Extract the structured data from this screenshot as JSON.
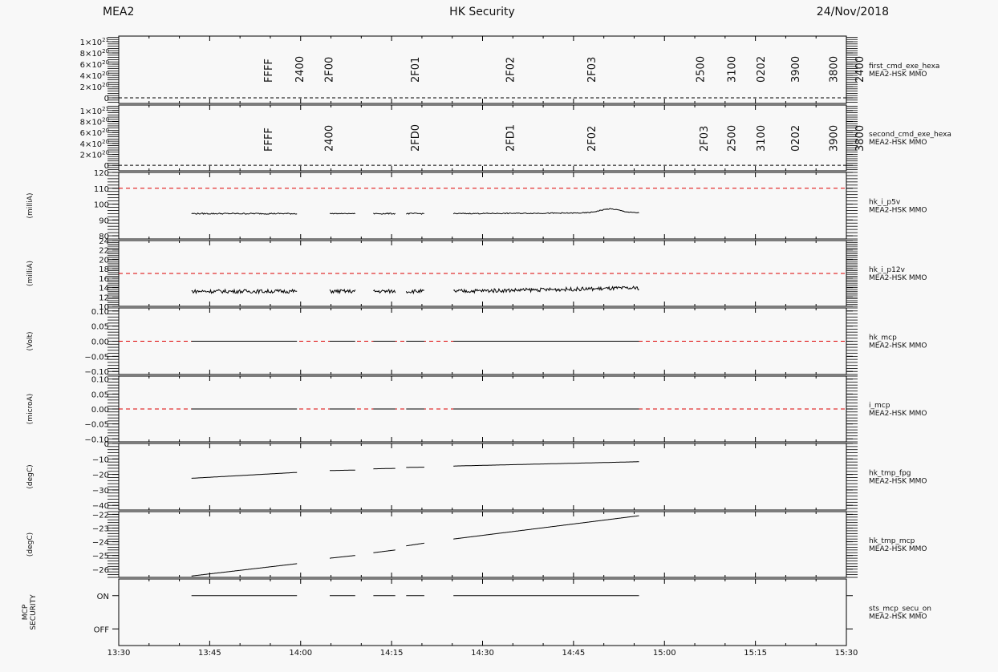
{
  "header": {
    "left": "MEA2",
    "center": "HK Security",
    "right": "24/Nov/2018"
  },
  "colors": {
    "background": "#f8f8f8",
    "axis": "#000000",
    "line": "#000000",
    "threshold": "#dd0000"
  },
  "chart_data": {
    "type": "line",
    "x_axis": {
      "start": "13:30",
      "end": "15:30",
      "tick_labels": [
        "13:30",
        "13:45",
        "14:00",
        "14:15",
        "14:30",
        "14:45",
        "15:00",
        "15:15",
        "15:30"
      ],
      "minor_step_minutes": 5
    },
    "panels": [
      {
        "id": "first_cmd",
        "ylabel": "",
        "title": "first_cmd_exe_hexa",
        "source": "MEA2-HSK MMO",
        "ylim": [
          -1e+20,
          1.1e+21
        ],
        "tick_labels": [
          {
            "v": 1e+21,
            "label": "1×10",
            "exp": "21"
          },
          {
            "v": 8e+20,
            "label": "8×10",
            "exp": "20"
          },
          {
            "v": 6e+20,
            "label": "6×10",
            "exp": "20"
          },
          {
            "v": 4e+20,
            "label": "4×10",
            "exp": "20"
          },
          {
            "v": 2e+20,
            "label": "2×10",
            "exp": "20"
          },
          {
            "v": 0,
            "label": "0",
            "exp": ""
          }
        ],
        "zero_line": 0,
        "annotations": [
          {
            "t": 13.7,
            "label": "FFFF"
          },
          {
            "t": 13.88,
            "label": "2400"
          },
          {
            "t": 14.05,
            "label": "2F00"
          },
          {
            "t": 14.55,
            "label": "2F01"
          },
          {
            "t": 15.1,
            "label": "2F02"
          },
          {
            "t": 15.57,
            "label": "2F03"
          },
          {
            "t": 16.2,
            "label": "2500"
          },
          {
            "t": 16.38,
            "label": "3100"
          },
          {
            "t": 16.55,
            "label": "0202"
          },
          {
            "t": 16.75,
            "label": "3900"
          },
          {
            "t": 16.97,
            "label": "3800"
          },
          {
            "t": 17.12,
            "label": "2400"
          }
        ]
      },
      {
        "id": "second_cmd",
        "ylabel": "",
        "title": "second_cmd_exe_hexa",
        "source": "MEA2-HSK MMO",
        "ylim": [
          -1e+20,
          1.1e+21
        ],
        "tick_labels": [
          {
            "v": 1e+21,
            "label": "1×10",
            "exp": "21"
          },
          {
            "v": 8e+20,
            "label": "8×10",
            "exp": "20"
          },
          {
            "v": 6e+20,
            "label": "6×10",
            "exp": "20"
          },
          {
            "v": 4e+20,
            "label": "4×10",
            "exp": "20"
          },
          {
            "v": 2e+20,
            "label": "2×10",
            "exp": "20"
          },
          {
            "v": 0,
            "label": "0",
            "exp": ""
          }
        ],
        "zero_line": 0,
        "annotations": [
          {
            "t": 13.7,
            "label": "FFFF"
          },
          {
            "t": 14.05,
            "label": "2400"
          },
          {
            "t": 14.55,
            "label": "2FD0"
          },
          {
            "t": 15.1,
            "label": "2FD1"
          },
          {
            "t": 15.57,
            "label": "2F02"
          },
          {
            "t": 16.22,
            "label": "2F03"
          },
          {
            "t": 16.38,
            "label": "2500"
          },
          {
            "t": 16.55,
            "label": "3100"
          },
          {
            "t": 16.75,
            "label": "0202"
          },
          {
            "t": 16.97,
            "label": "3900"
          },
          {
            "t": 17.12,
            "label": "3800"
          }
        ]
      },
      {
        "id": "hk_i_p5v",
        "ylabel": "(milliA)",
        "title": "hk_i_p5v",
        "source": "MEA2-HSK MMO",
        "ylim": [
          78,
          120
        ],
        "ticks": [
          80,
          90,
          100,
          110,
          120
        ],
        "threshold": 110,
        "segments": [
          {
            "t0": 13.7,
            "t1": 13.99,
            "y0": 94,
            "y1": 94,
            "noise": 0.4
          },
          {
            "t0": 14.08,
            "t1": 14.15,
            "y0": 94,
            "y1": 94,
            "noise": 0.2
          },
          {
            "t0": 14.2,
            "t1": 14.26,
            "y0": 94,
            "y1": 94,
            "noise": 0.4
          },
          {
            "t0": 14.29,
            "t1": 14.34,
            "y0": 94,
            "y1": 94,
            "noise": 0.4
          },
          {
            "t0": 14.42,
            "t1": 14.93,
            "y0": 94,
            "y1": 94.5,
            "noise": 0.3,
            "bump": {
              "t": 14.85,
              "h": 2.5,
              "w": 0.04
            }
          }
        ]
      },
      {
        "id": "hk_i_p12v",
        "ylabel": "(milliA)",
        "title": "hk_i_p12v",
        "source": "MEA2-HSK MMO",
        "ylim": [
          10,
          24
        ],
        "ticks": [
          10,
          12,
          14,
          16,
          18,
          20,
          22,
          24
        ],
        "threshold": 17,
        "segments": [
          {
            "t0": 13.7,
            "t1": 13.99,
            "y0": 13.2,
            "y1": 13.2,
            "noise": 0.4
          },
          {
            "t0": 14.08,
            "t1": 14.15,
            "y0": 13.2,
            "y1": 13.2,
            "noise": 0.4
          },
          {
            "t0": 14.2,
            "t1": 14.26,
            "y0": 13.2,
            "y1": 13.2,
            "noise": 0.4
          },
          {
            "t0": 14.29,
            "t1": 14.34,
            "y0": 13.2,
            "y1": 13.2,
            "noise": 0.4
          },
          {
            "t0": 14.42,
            "t1": 14.93,
            "y0": 13.2,
            "y1": 13.9,
            "noise": 0.4
          }
        ]
      },
      {
        "id": "hk_mcp",
        "ylabel": "(Volt)",
        "title": "hk_mcp",
        "source": "MEA2-HSK MMO",
        "ylim": [
          -0.11,
          0.11
        ],
        "ticks": [
          -0.1,
          -0.05,
          0.0,
          0.05,
          0.1
        ],
        "tick_text": [
          "−0.10",
          "−0.05",
          "0.00",
          "0.05",
          "0.10"
        ],
        "threshold": 0,
        "segments": [
          {
            "t0": 13.7,
            "t1": 13.99,
            "y0": 0,
            "y1": 0,
            "noise": 0
          },
          {
            "t0": 14.08,
            "t1": 14.15,
            "y0": 0,
            "y1": 0,
            "noise": 0
          },
          {
            "t0": 14.2,
            "t1": 14.26,
            "y0": 0,
            "y1": 0,
            "noise": 0
          },
          {
            "t0": 14.29,
            "t1": 14.34,
            "y0": 0,
            "y1": 0,
            "noise": 0
          },
          {
            "t0": 14.42,
            "t1": 14.93,
            "y0": 0,
            "y1": 0,
            "noise": 0
          }
        ]
      },
      {
        "id": "i_mcp",
        "ylabel": "(microA)",
        "title": "i_mcp",
        "source": "MEA2-HSK MMO",
        "ylim": [
          -0.11,
          0.11
        ],
        "ticks": [
          -0.1,
          -0.05,
          0.0,
          0.05,
          0.1
        ],
        "tick_text": [
          "−0.10",
          "−0.05",
          "0.00",
          "0.05",
          "0.10"
        ],
        "threshold": 0,
        "segments": [
          {
            "t0": 13.7,
            "t1": 13.99,
            "y0": 0,
            "y1": 0,
            "noise": 0
          },
          {
            "t0": 14.08,
            "t1": 14.15,
            "y0": 0,
            "y1": 0,
            "noise": 0
          },
          {
            "t0": 14.2,
            "t1": 14.26,
            "y0": 0,
            "y1": 0,
            "noise": 0
          },
          {
            "t0": 14.29,
            "t1": 14.34,
            "y0": 0,
            "y1": 0,
            "noise": 0
          },
          {
            "t0": 14.42,
            "t1": 14.93,
            "y0": 0,
            "y1": 0,
            "noise": 0
          }
        ]
      },
      {
        "id": "hk_tmp_fpg",
        "ylabel": "(degC)",
        "title": "hk_tmp_fpg",
        "source": "MEA2-HSK MMO",
        "ylim": [
          -43,
          0
        ],
        "ticks": [
          0,
          -10,
          -20,
          -30,
          -40
        ],
        "tick_text": [
          "0",
          "−10",
          "−20",
          "−30",
          "−40"
        ],
        "segments": [
          {
            "t0": 13.7,
            "t1": 13.99,
            "y0": -22.5,
            "y1": -18.7,
            "noise": 0
          },
          {
            "t0": 14.08,
            "t1": 14.15,
            "y0": -17.5,
            "y1": -17.2,
            "noise": 0
          },
          {
            "t0": 14.2,
            "t1": 14.26,
            "y0": -16.4,
            "y1": -16.1,
            "noise": 0
          },
          {
            "t0": 14.29,
            "t1": 14.34,
            "y0": -15.5,
            "y1": -15.3,
            "noise": 0
          },
          {
            "t0": 14.42,
            "t1": 14.93,
            "y0": -14.6,
            "y1": -11.8,
            "noise": 0
          }
        ]
      },
      {
        "id": "hk_tmp_mcp",
        "ylabel": "(degC)",
        "title": "hk_tmp_mcp",
        "source": "MEA2-HSK MMO",
        "ylim": [
          -26.6,
          -21.8
        ],
        "ticks": [
          -22,
          -23,
          -24,
          -25,
          -26
        ],
        "tick_text": [
          "−22",
          "−23",
          "−24",
          "−25",
          "−26"
        ],
        "segments": [
          {
            "t0": 13.7,
            "t1": 13.99,
            "y0": -26.5,
            "y1": -25.6,
            "noise": 0
          },
          {
            "t0": 14.08,
            "t1": 14.15,
            "y0": -25.2,
            "y1": -25.0,
            "noise": 0
          },
          {
            "t0": 14.2,
            "t1": 14.26,
            "y0": -24.8,
            "y1": -24.6,
            "noise": 0
          },
          {
            "t0": 14.29,
            "t1": 14.34,
            "y0": -24.3,
            "y1": -24.1,
            "noise": 0
          },
          {
            "t0": 14.42,
            "t1": 14.93,
            "y0": -23.8,
            "y1": -22.1,
            "noise": 0
          }
        ]
      },
      {
        "id": "sts_mcp_secu_on",
        "ylabel": "MCP SECURITY",
        "ylabel_lines": [
          "MCP",
          "SECURITY"
        ],
        "title": "sts_mcp_secu_on",
        "source": "MEA2-HSK MMO",
        "ylim": [
          -0.5,
          1.5
        ],
        "ticks": [
          1,
          0
        ],
        "tick_text": [
          "ON",
          "OFF"
        ],
        "segments": [
          {
            "t0": 13.7,
            "t1": 13.99,
            "y0": 1,
            "y1": 1,
            "noise": 0
          },
          {
            "t0": 14.08,
            "t1": 14.15,
            "y0": 1,
            "y1": 1,
            "noise": 0
          },
          {
            "t0": 14.2,
            "t1": 14.26,
            "y0": 1,
            "y1": 1,
            "noise": 0
          },
          {
            "t0": 14.29,
            "t1": 14.34,
            "y0": 1,
            "y1": 1,
            "noise": 0
          },
          {
            "t0": 14.42,
            "t1": 14.93,
            "y0": 1,
            "y1": 1,
            "noise": 0
          }
        ]
      }
    ]
  }
}
